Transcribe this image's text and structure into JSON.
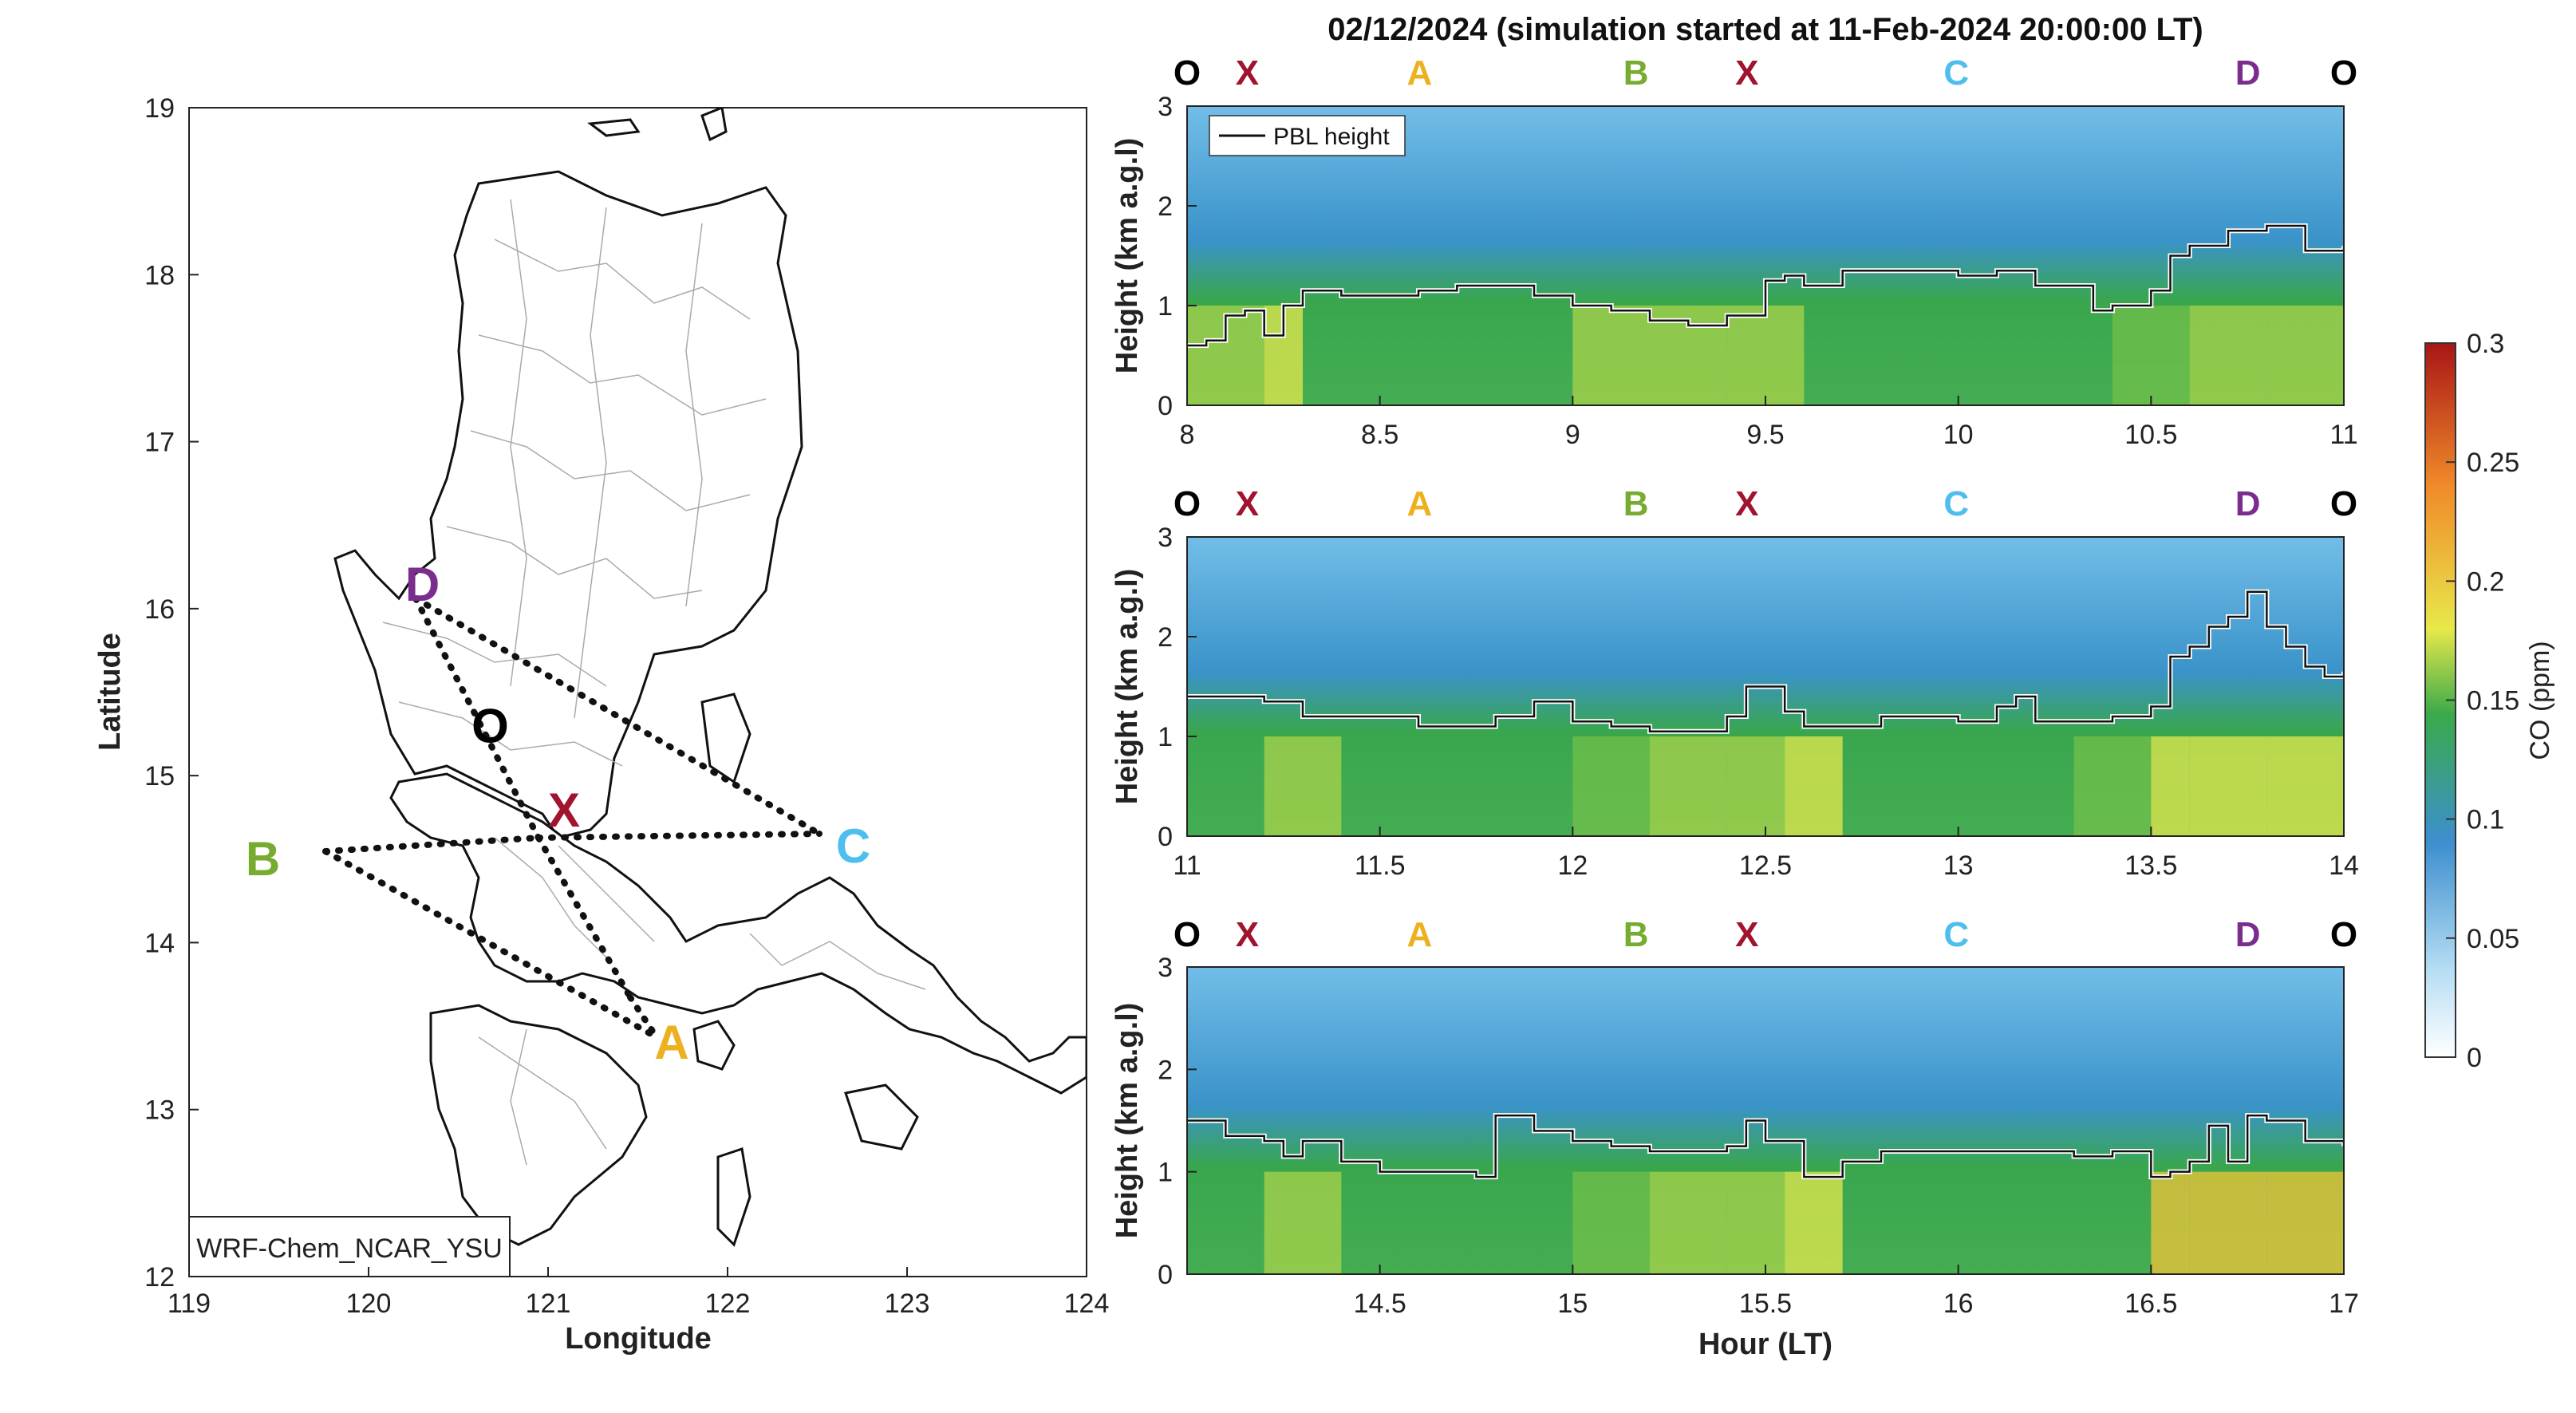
{
  "figure_title": "02/12/2024 (simulation started at 11-Feb-2024 20:00:00 LT)",
  "map": {
    "model_label": "WRF-Chem_NCAR_YSU",
    "xlabel": "Longitude",
    "ylabel": "Latitude",
    "xlim": [
      119,
      124
    ],
    "ylim": [
      12,
      19
    ],
    "xticks": [
      "119",
      "120",
      "121",
      "122",
      "123",
      "124"
    ],
    "yticks": [
      "12",
      "13",
      "14",
      "15",
      "16",
      "17",
      "18",
      "19"
    ],
    "points": [
      {
        "label": "D",
        "lon": 120.3,
        "lat": 16.0,
        "color": "#7B2D8E"
      },
      {
        "label": "O",
        "lon": 120.5,
        "lat": 15.2,
        "color": "#000000"
      },
      {
        "label": "X",
        "lon": 121.0,
        "lat": 14.6,
        "color": "#A0142E"
      },
      {
        "label": "B",
        "lon": 119.7,
        "lat": 14.5,
        "color": "#77AC30"
      },
      {
        "label": "C",
        "lon": 122.5,
        "lat": 14.6,
        "color": "#4DBEEE"
      },
      {
        "label": "A",
        "lon": 121.6,
        "lat": 13.4,
        "color": "#EDB120"
      }
    ]
  },
  "colorbar": {
    "label": "CO (ppm)",
    "min": 0,
    "max": 0.3,
    "ticks": [
      "0",
      "0.05",
      "0.1",
      "0.15",
      "0.2",
      "0.25",
      "0.3"
    ],
    "colors": [
      "#ffffff",
      "#9fd2ee",
      "#3d8fd0",
      "#3aaa4a",
      "#e8e84a",
      "#f08a2a",
      "#b01818"
    ]
  },
  "route_markers": [
    {
      "label": "O",
      "color": "#000000"
    },
    {
      "label": "X",
      "color": "#A0142E"
    },
    {
      "label": "A",
      "color": "#EDB120"
    },
    {
      "label": "B",
      "color": "#77AC30"
    },
    {
      "label": "X",
      "color": "#A0142E"
    },
    {
      "label": "C",
      "color": "#4DBEEE"
    },
    {
      "label": "D",
      "color": "#7B2D8E"
    },
    {
      "label": "O",
      "color": "#000000"
    }
  ],
  "chart_data": [
    {
      "type": "heatmap",
      "xlim": [
        8,
        11
      ],
      "ylim": [
        0,
        3
      ],
      "xticks": [
        "8",
        "8.5",
        "9",
        "9.5",
        "10",
        "10.5",
        "11"
      ],
      "yticks": [
        "0",
        "1",
        "2",
        "3"
      ],
      "ylabel": "Height (km a.g.l)",
      "xlabel": "",
      "legend": {
        "entry": "PBL height",
        "placement": "top-left"
      },
      "pbl_height": {
        "x": [
          8.0,
          8.05,
          8.1,
          8.15,
          8.2,
          8.25,
          8.3,
          8.4,
          8.5,
          8.6,
          8.7,
          8.8,
          8.9,
          9.0,
          9.1,
          9.2,
          9.3,
          9.4,
          9.5,
          9.55,
          9.6,
          9.7,
          9.8,
          9.9,
          10.0,
          10.1,
          10.2,
          10.3,
          10.35,
          10.4,
          10.5,
          10.55,
          10.6,
          10.7,
          10.8,
          10.9,
          11.0
        ],
        "y": [
          0.6,
          0.65,
          0.9,
          0.95,
          0.7,
          1.0,
          1.15,
          1.1,
          1.1,
          1.15,
          1.2,
          1.2,
          1.1,
          1.0,
          0.95,
          0.85,
          0.8,
          0.9,
          1.25,
          1.3,
          1.2,
          1.35,
          1.35,
          1.35,
          1.3,
          1.35,
          1.2,
          1.2,
          0.95,
          1.0,
          1.15,
          1.5,
          1.6,
          1.75,
          1.8,
          1.55,
          1.6
        ]
      },
      "co_surface_ppm": {
        "x": [
          8.0,
          8.2,
          8.3,
          8.6,
          8.9,
          9.0,
          9.2,
          9.4,
          9.5,
          9.6,
          9.8,
          10.0,
          10.2,
          10.4,
          10.6,
          10.8,
          11.0
        ],
        "y": [
          0.14,
          0.17,
          0.12,
          0.11,
          0.11,
          0.14,
          0.15,
          0.14,
          0.15,
          0.11,
          0.11,
          0.11,
          0.11,
          0.13,
          0.14,
          0.14,
          0.14
        ]
      }
    },
    {
      "type": "heatmap",
      "xlim": [
        11,
        14
      ],
      "ylim": [
        0,
        3
      ],
      "xticks": [
        "11",
        "11.5",
        "12",
        "12.5",
        "13",
        "13.5",
        "14"
      ],
      "yticks": [
        "0",
        "1",
        "2",
        "3"
      ],
      "ylabel": "Height (km a.g.l)",
      "xlabel": "",
      "pbl_height": {
        "x": [
          11.0,
          11.1,
          11.2,
          11.3,
          11.35,
          11.5,
          11.6,
          11.8,
          11.9,
          12.0,
          12.1,
          12.2,
          12.3,
          12.4,
          12.45,
          12.55,
          12.6,
          12.8,
          12.9,
          13.0,
          13.1,
          13.15,
          13.2,
          13.3,
          13.4,
          13.5,
          13.55,
          13.6,
          13.65,
          13.7,
          13.75,
          13.8,
          13.85,
          13.9,
          13.95,
          14.0
        ],
        "y": [
          1.4,
          1.4,
          1.35,
          1.2,
          1.2,
          1.2,
          1.1,
          1.2,
          1.35,
          1.15,
          1.1,
          1.05,
          1.05,
          1.2,
          1.5,
          1.25,
          1.1,
          1.2,
          1.2,
          1.15,
          1.3,
          1.4,
          1.15,
          1.15,
          1.2,
          1.3,
          1.8,
          1.9,
          2.1,
          2.2,
          2.45,
          2.1,
          1.9,
          1.7,
          1.6,
          1.65
        ]
      },
      "co_surface_ppm": {
        "x": [
          11.0,
          11.2,
          11.4,
          11.8,
          12.0,
          12.2,
          12.4,
          12.55,
          12.7,
          13.0,
          13.3,
          13.5,
          13.6,
          13.8,
          14.0
        ],
        "y": [
          0.12,
          0.15,
          0.12,
          0.12,
          0.13,
          0.14,
          0.14,
          0.16,
          0.12,
          0.12,
          0.13,
          0.16,
          0.17,
          0.16,
          0.15
        ]
      }
    },
    {
      "type": "heatmap",
      "xlim": [
        14,
        17
      ],
      "ylim": [
        0,
        3
      ],
      "xticks": [
        "14.5",
        "15",
        "15.5",
        "16",
        "16.5",
        "17"
      ],
      "yticks": [
        "0",
        "1",
        "2",
        "3"
      ],
      "ylabel": "Height (km a.g.l)",
      "xlabel": "Hour (LT)",
      "pbl_height": {
        "x": [
          14.0,
          14.1,
          14.2,
          14.25,
          14.3,
          14.4,
          14.5,
          14.6,
          14.75,
          14.8,
          14.9,
          15.0,
          15.1,
          15.2,
          15.3,
          15.4,
          15.45,
          15.5,
          15.6,
          15.7,
          15.8,
          15.9,
          16.0,
          16.1,
          16.2,
          16.3,
          16.4,
          16.5,
          16.55,
          16.6,
          16.65,
          16.7,
          16.75,
          16.8,
          16.9,
          17.0
        ],
        "y": [
          1.5,
          1.35,
          1.3,
          1.15,
          1.3,
          1.1,
          1.0,
          1.0,
          0.95,
          1.55,
          1.4,
          1.3,
          1.25,
          1.2,
          1.2,
          1.25,
          1.5,
          1.3,
          0.95,
          1.1,
          1.2,
          1.2,
          1.2,
          1.2,
          1.2,
          1.15,
          1.2,
          0.95,
          1.0,
          1.1,
          1.45,
          1.1,
          1.55,
          1.5,
          1.3,
          1.25
        ]
      },
      "co_surface_ppm": {
        "x": [
          14.0,
          14.2,
          14.4,
          14.8,
          15.0,
          15.2,
          15.4,
          15.55,
          15.7,
          16.0,
          16.3,
          16.5,
          16.6,
          16.8,
          17.0
        ],
        "y": [
          0.12,
          0.15,
          0.12,
          0.12,
          0.13,
          0.14,
          0.14,
          0.16,
          0.12,
          0.12,
          0.12,
          0.18,
          0.19,
          0.18,
          0.16
        ]
      }
    }
  ]
}
